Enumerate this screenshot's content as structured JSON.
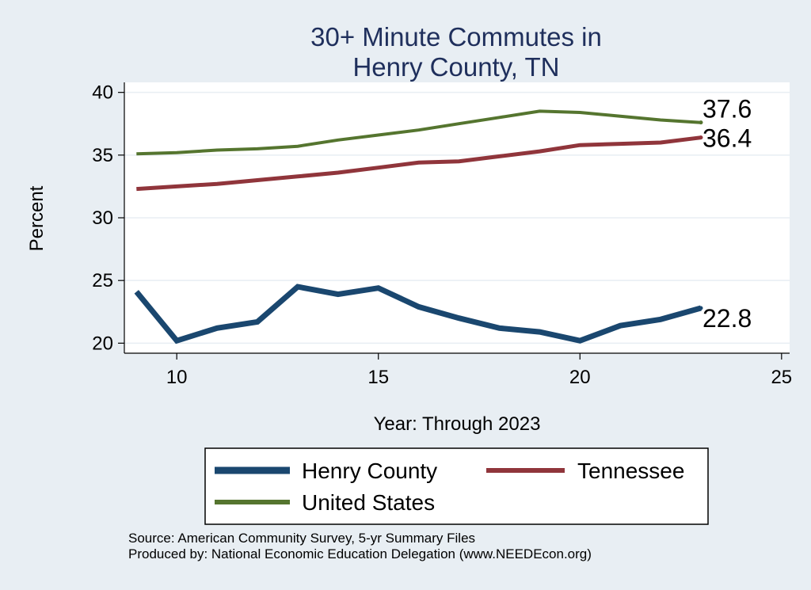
{
  "colors": {
    "background": "#e8eef3",
    "plot_background": "#ffffff",
    "gridline": "#e8eef3",
    "title": "#1f2f5c",
    "henry_county": "#1a476f",
    "tennessee": "#90353b",
    "united_states": "#55752f"
  },
  "chart_data": {
    "type": "line",
    "title": [
      "30+ Minute Commutes in",
      "Henry County, TN"
    ],
    "xlabel": "Year: Through 2023",
    "ylabel": "Percent",
    "xlim": [
      8.7,
      25.2
    ],
    "ylim": [
      19.2,
      40.8
    ],
    "xticks": [
      10,
      15,
      20,
      25
    ],
    "yticks": [
      20,
      25,
      30,
      35,
      40
    ],
    "grid": true,
    "x": [
      9,
      10,
      11,
      12,
      13,
      14,
      15,
      16,
      17,
      18,
      19,
      20,
      21,
      22,
      23
    ],
    "series": [
      {
        "name": "Henry County",
        "color_key": "henry_county",
        "width": 7,
        "values": [
          24.1,
          20.2,
          21.2,
          21.7,
          24.5,
          23.9,
          24.4,
          22.9,
          22.0,
          21.2,
          20.9,
          20.2,
          21.4,
          21.9,
          22.8
        ],
        "end_label": "22.8"
      },
      {
        "name": "Tennessee",
        "color_key": "tennessee",
        "width": 5,
        "values": [
          32.3,
          32.5,
          32.7,
          33.0,
          33.3,
          33.6,
          34.0,
          34.4,
          34.5,
          34.9,
          35.3,
          35.8,
          35.9,
          36.0,
          36.4
        ],
        "end_label": "36.4"
      },
      {
        "name": "United States",
        "color_key": "united_states",
        "width": 4,
        "values": [
          35.1,
          35.2,
          35.4,
          35.5,
          35.7,
          36.2,
          36.6,
          37.0,
          37.5,
          38.0,
          38.5,
          38.4,
          38.1,
          37.8,
          37.6
        ],
        "end_label": "37.6"
      }
    ],
    "legend": {
      "placement": "bottom",
      "entries": [
        "Henry County",
        "Tennessee",
        "United States"
      ]
    }
  },
  "source_lines": [
    "Source: American Community Survey, 5-yr Summary Files",
    "Produced by: National Economic Education Delegation (www.NEEDEcon.org)"
  ]
}
